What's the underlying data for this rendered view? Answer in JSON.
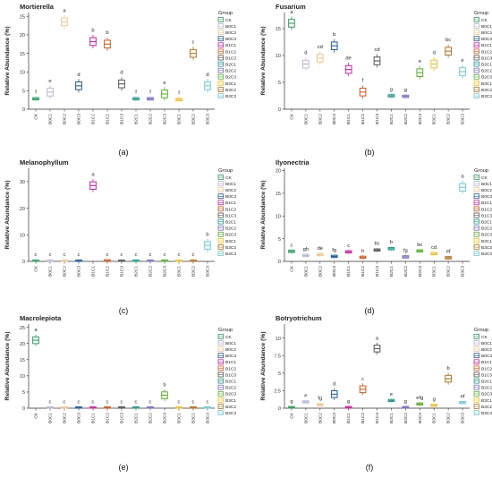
{
  "legend_title": "Group",
  "legend_items": [
    {
      "name": "CK",
      "color": "#2ca25f"
    },
    {
      "name": "B0C1",
      "color": "#b8b8d6"
    },
    {
      "name": "B0C2",
      "color": "#f4c58f"
    },
    {
      "name": "B0C3",
      "color": "#1f5c9b"
    },
    {
      "name": "B1C1",
      "color": "#d6219e"
    },
    {
      "name": "B1C2",
      "color": "#d65a1e"
    },
    {
      "name": "B1C3",
      "color": "#555555"
    },
    {
      "name": "B2C1",
      "color": "#1c9c8c"
    },
    {
      "name": "B2C2",
      "color": "#7b6cc9"
    },
    {
      "name": "B2C3",
      "color": "#55b52a"
    },
    {
      "name": "B3C1",
      "color": "#f2c12e"
    },
    {
      "name": "B3C2",
      "color": "#b8731e"
    },
    {
      "name": "B3C3",
      "color": "#6dcdd8"
    }
  ],
  "chart_data": [
    {
      "type": "box",
      "panel_label": "(a)",
      "title": "Mortierella",
      "ylabel": "Relative Abundance (%)",
      "categories": [
        "CK",
        "B0C1",
        "B0C2",
        "B0C3",
        "B1C1",
        "B1C2",
        "B1C3",
        "B2C1",
        "B2C2",
        "B2C3",
        "B3C1",
        "B3C2",
        "B3C3"
      ],
      "ylim": [
        0,
        26
      ],
      "yticks": [
        0,
        5,
        10,
        15,
        20,
        25
      ],
      "values": [
        2.8,
        4.6,
        23.5,
        6.3,
        18.2,
        17.5,
        6.8,
        2.8,
        2.8,
        4.1,
        2.6,
        15,
        6.3
      ],
      "letters": [
        "f",
        "e",
        "a",
        "d",
        "b",
        "b",
        "d",
        "f",
        "f",
        "e",
        "f",
        "c",
        "d"
      ]
    },
    {
      "type": "box",
      "panel_label": "(b)",
      "title": "Fusarium",
      "ylabel": "Relative Abundance (%)",
      "categories": [
        "CK",
        "B0C1",
        "B0C2",
        "B0C3",
        "B1C1",
        "B1C2",
        "B1C3",
        "B2C1",
        "B2C2",
        "B2C3",
        "B3C1",
        "B3C2",
        "B3C3"
      ],
      "ylim": [
        0,
        18
      ],
      "yticks": [
        0,
        5,
        10,
        15
      ],
      "values": [
        16,
        8.4,
        9.5,
        11.8,
        7.4,
        3.2,
        9,
        2.5,
        2.4,
        6.8,
        8.4,
        10.8,
        7
      ],
      "letters": [
        "a",
        "d",
        "cd",
        "b",
        "de",
        "f",
        "cd",
        "g",
        "g",
        "e",
        "d",
        "bc",
        "e"
      ]
    },
    {
      "type": "box",
      "panel_label": "(c)",
      "title": "Melanophyllum",
      "ylabel": "Relative Abundance (%)",
      "categories": [
        "CK",
        "B0C1",
        "B0C2",
        "B0C3",
        "B1C1",
        "B1C2",
        "B1C3",
        "B2C1",
        "B2C2",
        "B2C3",
        "B3C1",
        "B3C2",
        "B3C3"
      ],
      "ylim": [
        0,
        35
      ],
      "yticks": [
        0,
        10,
        20,
        30
      ],
      "values": [
        0.1,
        0.1,
        0.1,
        0.1,
        28.5,
        0.2,
        0.1,
        0.1,
        0.1,
        0.1,
        0.1,
        0.1,
        6
      ],
      "letters": [
        "c",
        "c",
        "c",
        "c",
        "a",
        "c",
        "c",
        "c",
        "c",
        "c",
        "c",
        "c",
        "b"
      ]
    },
    {
      "type": "box",
      "panel_label": "(d)",
      "title": "Ilyonectria",
      "ylabel": "Relative Abundance (%)",
      "categories": [
        "CK",
        "B0C1",
        "B0C2",
        "B0C3",
        "B1C1",
        "B1C2",
        "B1C3",
        "B2C1",
        "B2C2",
        "B2C3",
        "B3C1",
        "B3C2",
        "B3C3"
      ],
      "ylim": [
        0,
        20.5
      ],
      "yticks": [
        0,
        5,
        10,
        15,
        20
      ],
      "values": [
        2.2,
        1.3,
        1.5,
        1.1,
        2.1,
        0.9,
        2.5,
        2.8,
        1,
        2.3,
        1.7,
        0.8,
        16.3
      ],
      "letters": [
        "c",
        "gh",
        "de",
        "fg",
        "c",
        "h",
        "bc",
        "b",
        "fg",
        "bc",
        "cd",
        "ef",
        "a"
      ]
    },
    {
      "type": "box",
      "panel_label": "(e)",
      "title": "Macrolepiota",
      "ylabel": "Relative Abundance (%)",
      "categories": [
        "CK",
        "B0C1",
        "B0C2",
        "B0C3",
        "B1C1",
        "B1C2",
        "B1C3",
        "B2C1",
        "B2C2",
        "B2C3",
        "B3C1",
        "B3C2",
        "B3C3"
      ],
      "ylim": [
        0,
        26
      ],
      "yticks": [
        0,
        5,
        10,
        15,
        20,
        25
      ],
      "values": [
        21,
        0.1,
        0.1,
        0.1,
        0.1,
        0.1,
        0.1,
        0.1,
        0.1,
        4,
        0.1,
        0.1,
        0.1
      ],
      "letters": [
        "a",
        "c",
        "c",
        "c",
        "c",
        "c",
        "c",
        "c",
        "c",
        "b",
        "c",
        "c",
        "c"
      ]
    },
    {
      "type": "box",
      "panel_label": "(f)",
      "title": "Botryotrichum",
      "ylabel": "Relative Abundance (%)",
      "categories": [
        "CK",
        "B0C1",
        "B0C2",
        "B0C3",
        "B1C1",
        "B1C2",
        "B1C3",
        "B2C1",
        "B2C2",
        "B2C3",
        "B3C1",
        "B3C2",
        "B3C3"
      ],
      "ylim": [
        0,
        12
      ],
      "yticks": [
        0,
        2.5,
        5,
        7.5,
        10
      ],
      "values": [
        0.1,
        0.9,
        0.5,
        2,
        0.1,
        2.7,
        8.5,
        1.1,
        0.1,
        0.6,
        0.4,
        4.2,
        0.8
      ],
      "letters": [
        "g",
        "e",
        "fg",
        "d",
        "g",
        "c",
        "a",
        "e",
        "g",
        "efg",
        "g",
        "b",
        "ef"
      ]
    }
  ]
}
